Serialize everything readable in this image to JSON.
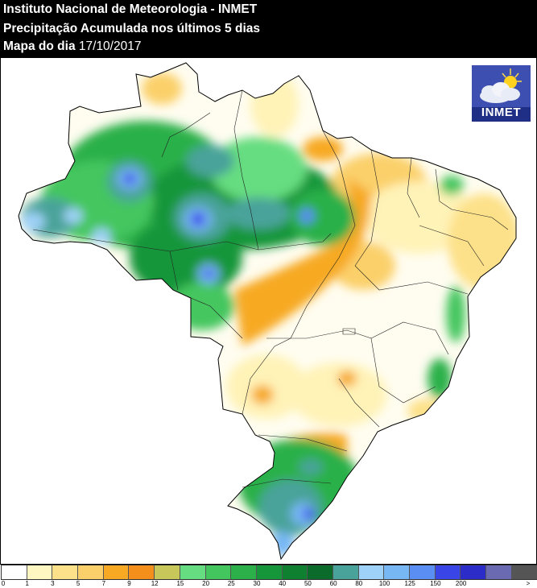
{
  "header": {
    "title_line1": "Instituto Nacional de Meteorologia - INMET",
    "title_line2": "Precipitação Acumulada nos últimos 5 dias",
    "title_line3_prefix": "Mapa do dia",
    "title_line3_date": "17/10/2017"
  },
  "logo": {
    "text": "INMET",
    "icon": "cloud-sun-icon"
  },
  "legend": {
    "colors": [
      "#ffffff",
      "#fff7c2",
      "#fde18a",
      "#fbd06a",
      "#f7a924",
      "#f58f1c",
      "#c8c85a",
      "#66dd80",
      "#44c65e",
      "#2cb04a",
      "#16963a",
      "#0e8030",
      "#0b6b2a",
      "#4aa39a",
      "#9fd2f8",
      "#77b7f4",
      "#5a8ef2",
      "#3a45e8",
      "#2c2cc8",
      "#6a6ab2",
      "#555555"
    ],
    "ticks": [
      "0",
      "1",
      "3",
      "5",
      "7",
      "9",
      "12",
      "15",
      "20",
      "25",
      "30",
      "40",
      "50",
      "60",
      "80",
      "100",
      "125",
      "150",
      "200",
      ">"
    ]
  }
}
